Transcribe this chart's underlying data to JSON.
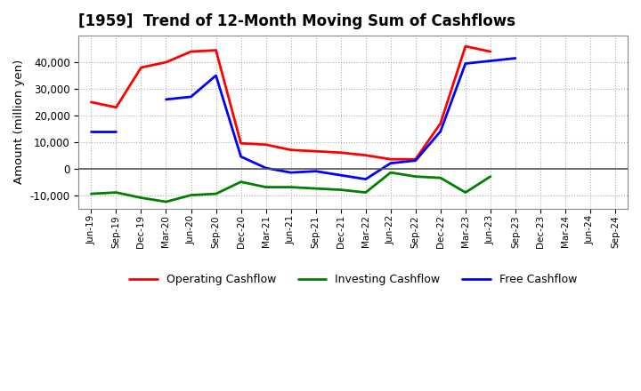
{
  "title": "[1959]  Trend of 12-Month Moving Sum of Cashflows",
  "ylabel": "Amount (million yen)",
  "x_labels": [
    "Jun-19",
    "Sep-19",
    "Dec-19",
    "Mar-20",
    "Jun-20",
    "Sep-20",
    "Dec-20",
    "Mar-21",
    "Jun-21",
    "Sep-21",
    "Dec-21",
    "Mar-22",
    "Jun-22",
    "Sep-22",
    "Dec-22",
    "Mar-23",
    "Jun-23",
    "Sep-23",
    "Dec-23",
    "Mar-24",
    "Jun-24",
    "Sep-24"
  ],
  "operating": [
    25000,
    23000,
    38000,
    40000,
    44000,
    44500,
    9500,
    9000,
    7000,
    6500,
    6000,
    5000,
    3500,
    3500,
    17000,
    46000,
    44000,
    null,
    null,
    null,
    null,
    null
  ],
  "investing": [
    -9500,
    -9000,
    -11000,
    -12500,
    -10000,
    -9500,
    -5000,
    -7000,
    -7000,
    -7500,
    -8000,
    -9000,
    -1500,
    -3000,
    -3500,
    -9000,
    -3000,
    null,
    null,
    null,
    null,
    null
  ],
  "free": [
    14000,
    14000,
    null,
    26000,
    27000,
    35000,
    4500,
    200,
    -1500,
    -1000,
    -2500,
    -4000,
    2000,
    3000,
    14000,
    39500,
    40500,
    41500,
    null,
    null,
    null,
    null
  ],
  "ylim": [
    -15000,
    50000
  ],
  "yticks": [
    -10000,
    0,
    10000,
    20000,
    30000,
    40000
  ],
  "colors": {
    "operating": "#ff0000",
    "investing": "#008000",
    "free": "#0000ff"
  },
  "legend": [
    "Operating Cashflow",
    "Investing Cashflow",
    "Free Cashflow"
  ],
  "bg_color": "#ffffff",
  "grid_color": "#888888"
}
